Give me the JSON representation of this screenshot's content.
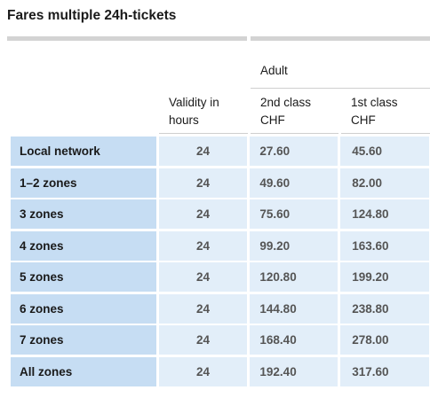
{
  "title": "Fares multiple 24h-tickets",
  "header": {
    "group_label": "Adult",
    "validity_label": "Validity in hours",
    "second_class_label": "2nd class CHF",
    "first_class_label": "1st class CHF"
  },
  "rows": [
    {
      "label": "Local network",
      "validity": "24",
      "second": "27.60",
      "first": "45.60"
    },
    {
      "label": "1–2 zones",
      "validity": "24",
      "second": "49.60",
      "first": "82.00"
    },
    {
      "label": "3 zones",
      "validity": "24",
      "second": "75.60",
      "first": "124.80"
    },
    {
      "label": "4 zones",
      "validity": "24",
      "second": "99.20",
      "first": "163.60"
    },
    {
      "label": "5 zones",
      "validity": "24",
      "second": "120.80",
      "first": "199.20"
    },
    {
      "label": "6 zones",
      "validity": "24",
      "second": "144.80",
      "first": "238.80"
    },
    {
      "label": "7 zones",
      "validity": "24",
      "second": "168.40",
      "first": "278.00"
    },
    {
      "label": "All zones",
      "validity": "24",
      "second": "192.40",
      "first": "317.60"
    }
  ]
}
